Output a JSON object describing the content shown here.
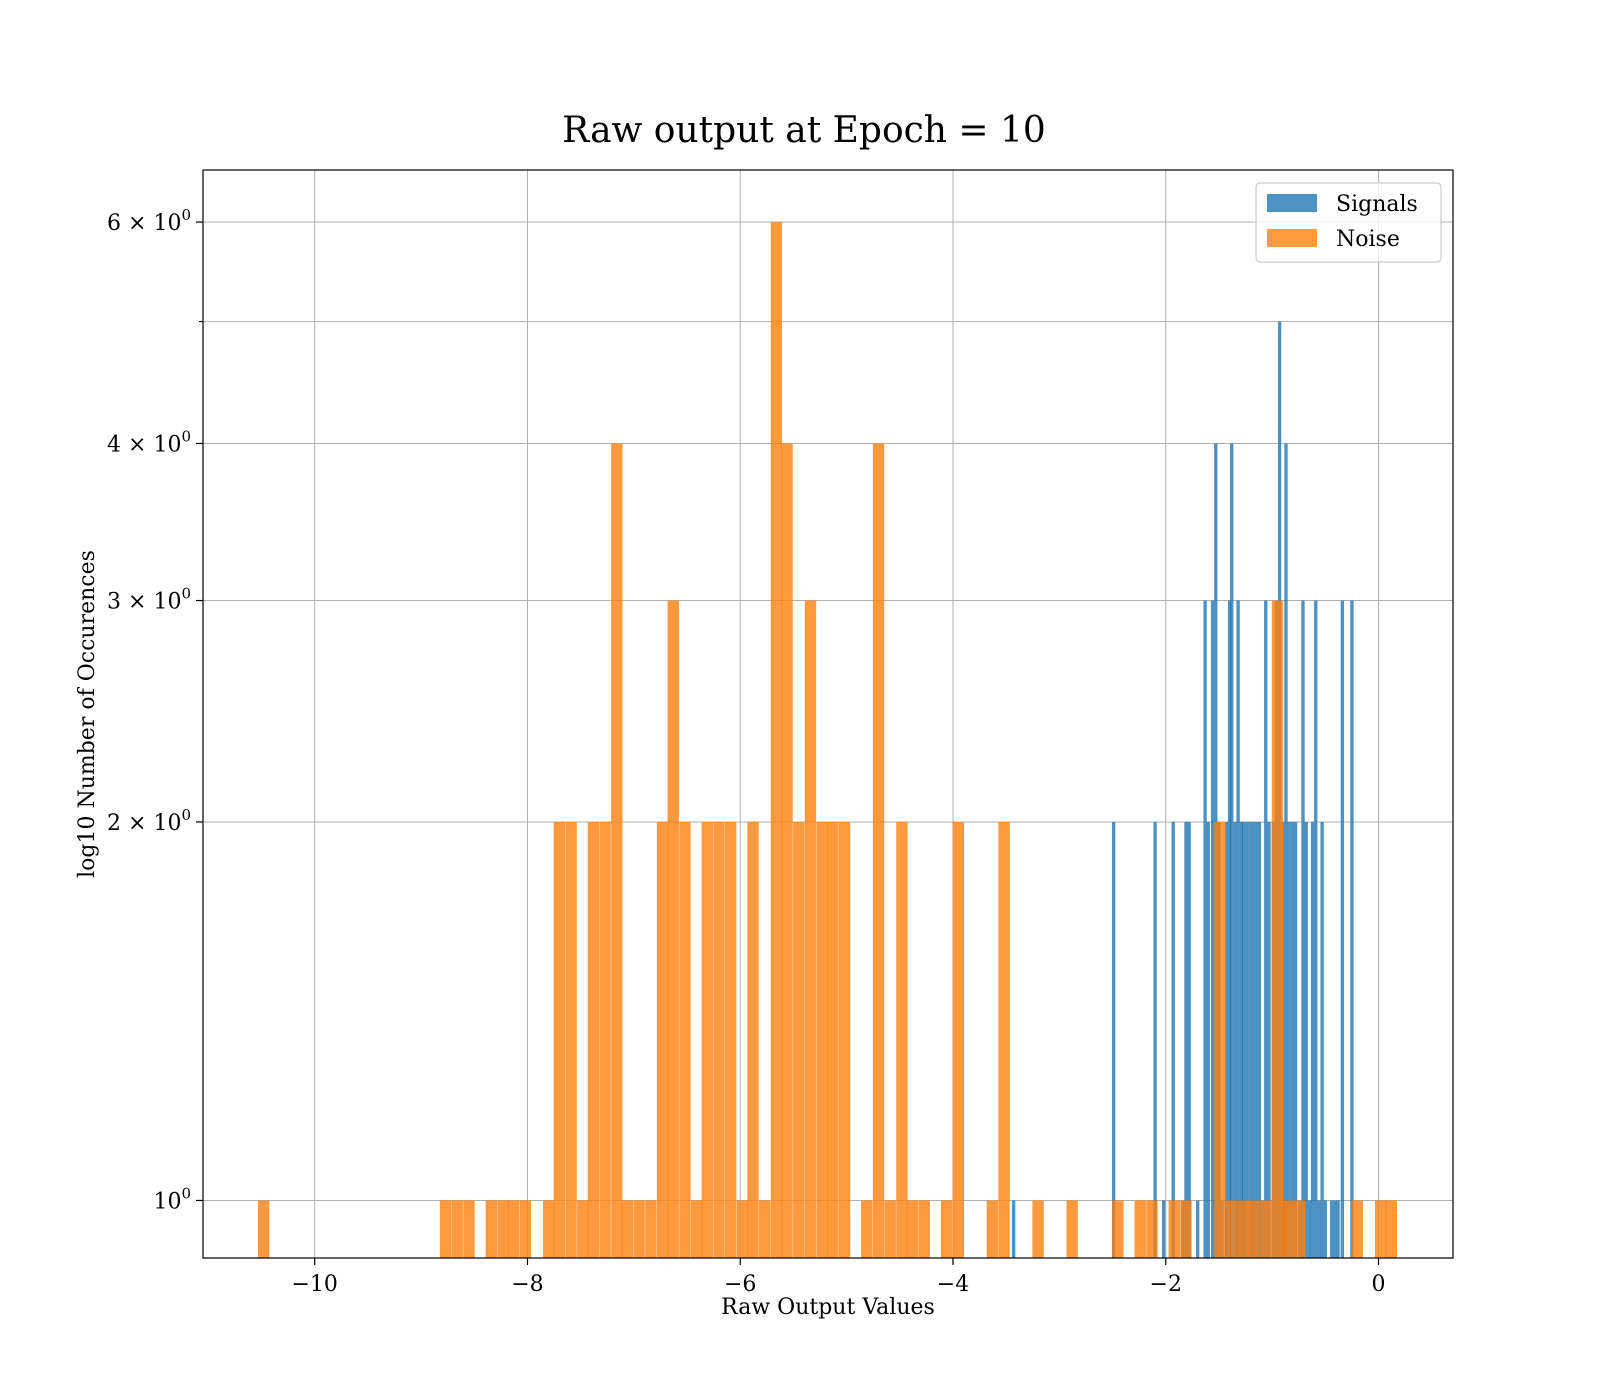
{
  "chart_data": {
    "type": "bar",
    "title": "Raw output at Epoch = 10",
    "xlabel": "Raw Output Values",
    "ylabel": "log10 Number of Occurences",
    "xlim": [
      -11.05,
      0.7
    ],
    "ylim": [
      0.9,
      6.6
    ],
    "y_scale": "log",
    "grid": true,
    "legend_position": "top-right",
    "x_ticks": [
      -10,
      -8,
      -6,
      -4,
      -2,
      0
    ],
    "x_tick_labels": [
      "−10",
      "−8",
      "−6",
      "−4",
      "−2",
      "0"
    ],
    "y_ticks": [
      {
        "value": 1,
        "base": "10",
        "exp": "0"
      },
      {
        "value": 2,
        "base": "2 × 10",
        "exp": "0"
      },
      {
        "value": 3,
        "base": "3 × 10",
        "exp": "0"
      },
      {
        "value": 4,
        "base": "4 × 10",
        "exp": "0"
      },
      {
        "value": 6,
        "base": "6 × 10",
        "exp": "0"
      }
    ],
    "series": [
      {
        "name": "Signals",
        "color": "#1f77b4",
        "opacity": 0.8,
        "bin_width": 0.0315,
        "bins": [
          [
            -3.43,
            1
          ],
          [
            -2.49,
            2
          ],
          [
            -2.1,
            2
          ],
          [
            -2.02,
            1
          ],
          [
            -1.93,
            2
          ],
          [
            -1.84,
            1
          ],
          [
            -1.81,
            2
          ],
          [
            -1.78,
            2
          ],
          [
            -1.7,
            1
          ],
          [
            -1.63,
            3
          ],
          [
            -1.6,
            2
          ],
          [
            -1.56,
            3
          ],
          [
            -1.53,
            4
          ],
          [
            -1.5,
            2
          ],
          [
            -1.47,
            1
          ],
          [
            -1.43,
            2
          ],
          [
            -1.4,
            3
          ],
          [
            -1.38,
            4
          ],
          [
            -1.35,
            2
          ],
          [
            -1.32,
            3
          ],
          [
            -1.29,
            2
          ],
          [
            -1.27,
            2
          ],
          [
            -1.24,
            2
          ],
          [
            -1.21,
            2
          ],
          [
            -1.18,
            2
          ],
          [
            -1.15,
            2
          ],
          [
            -1.12,
            2
          ],
          [
            -1.09,
            1
          ],
          [
            -1.06,
            3
          ],
          [
            -1.03,
            2
          ],
          [
            -0.99,
            2
          ],
          [
            -0.96,
            3
          ],
          [
            -0.93,
            5
          ],
          [
            -0.9,
            2
          ],
          [
            -0.87,
            4
          ],
          [
            -0.84,
            2
          ],
          [
            -0.81,
            2
          ],
          [
            -0.78,
            2
          ],
          [
            -0.74,
            1
          ],
          [
            -0.71,
            3
          ],
          [
            -0.68,
            2
          ],
          [
            -0.65,
            1
          ],
          [
            -0.62,
            2
          ],
          [
            -0.59,
            3
          ],
          [
            -0.56,
            1
          ],
          [
            -0.53,
            2
          ],
          [
            -0.5,
            1
          ],
          [
            -0.44,
            1
          ],
          [
            -0.41,
            1
          ],
          [
            -0.38,
            1
          ],
          [
            -0.34,
            3
          ],
          [
            -0.25,
            3
          ]
        ]
      },
      {
        "name": "Noise",
        "color": "#ff7f0e",
        "opacity": 0.8,
        "bin_width": 0.107,
        "bins": [
          [
            -10.48,
            1
          ],
          [
            -8.77,
            1
          ],
          [
            -8.66,
            1
          ],
          [
            -8.55,
            1
          ],
          [
            -8.34,
            1
          ],
          [
            -8.23,
            1
          ],
          [
            -8.13,
            1
          ],
          [
            -8.02,
            1
          ],
          [
            -7.8,
            1
          ],
          [
            -7.7,
            2
          ],
          [
            -7.59,
            2
          ],
          [
            -7.48,
            1
          ],
          [
            -7.38,
            2
          ],
          [
            -7.27,
            2
          ],
          [
            -7.16,
            4
          ],
          [
            -7.06,
            1
          ],
          [
            -6.95,
            1
          ],
          [
            -6.84,
            1
          ],
          [
            -6.73,
            2
          ],
          [
            -6.63,
            3
          ],
          [
            -6.52,
            2
          ],
          [
            -6.41,
            1
          ],
          [
            -6.31,
            2
          ],
          [
            -6.2,
            2
          ],
          [
            -6.09,
            2
          ],
          [
            -5.98,
            1
          ],
          [
            -5.88,
            2
          ],
          [
            -5.77,
            1
          ],
          [
            -5.66,
            6
          ],
          [
            -5.56,
            4
          ],
          [
            -5.45,
            2
          ],
          [
            -5.34,
            3
          ],
          [
            -5.23,
            2
          ],
          [
            -5.13,
            2
          ],
          [
            -5.02,
            2
          ],
          [
            -4.81,
            1
          ],
          [
            -4.7,
            4
          ],
          [
            -4.59,
            1
          ],
          [
            -4.48,
            2
          ],
          [
            -4.38,
            1
          ],
          [
            -4.27,
            1
          ],
          [
            -4.06,
            1
          ],
          [
            -3.95,
            2
          ],
          [
            -3.63,
            1
          ],
          [
            -3.52,
            2
          ],
          [
            -3.2,
            1
          ],
          [
            -2.88,
            1
          ],
          [
            -2.45,
            1
          ],
          [
            -2.24,
            1
          ],
          [
            -2.13,
            1
          ],
          [
            -1.92,
            1
          ],
          [
            -1.81,
            1
          ],
          [
            -1.49,
            2
          ],
          [
            -1.38,
            1
          ],
          [
            -1.27,
            1
          ],
          [
            -1.17,
            1
          ],
          [
            -1.06,
            1
          ],
          [
            -0.95,
            3
          ],
          [
            -0.84,
            1
          ],
          [
            -0.74,
            1
          ],
          [
            -0.2,
            1
          ],
          [
            0.02,
            1
          ],
          [
            0.12,
            1
          ]
        ]
      }
    ]
  }
}
